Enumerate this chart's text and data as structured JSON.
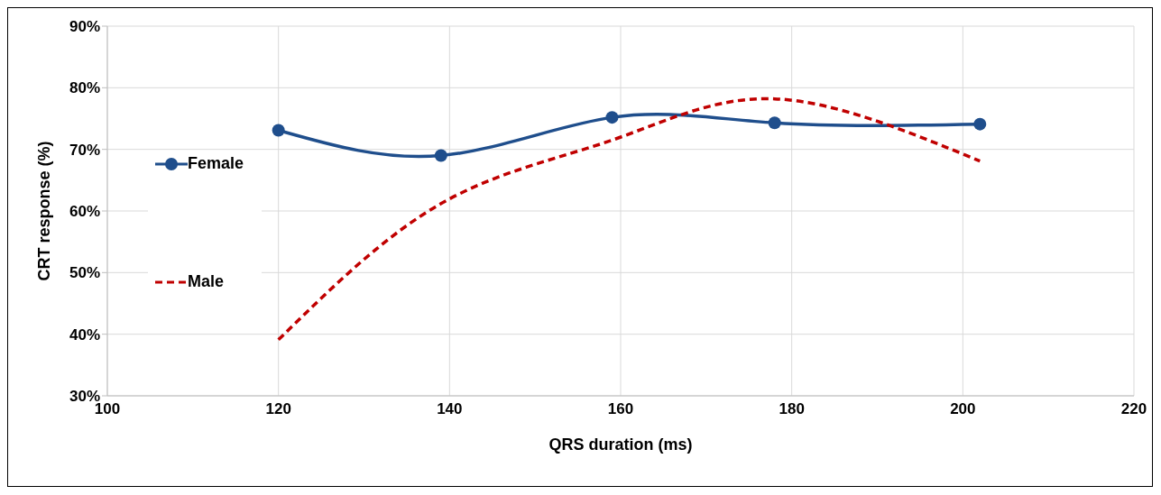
{
  "chart_data": {
    "type": "line",
    "xlabel": "QRS duration (ms)",
    "ylabel": "CRT response (%)",
    "x": [
      120,
      139,
      159,
      178,
      202
    ],
    "series": [
      {
        "name": "Female",
        "color": "#1f4e8c",
        "values": [
          73.1,
          69,
          75.2,
          74.3,
          74.1
        ],
        "marker": "circle",
        "line_style": "solid"
      },
      {
        "name": "Male",
        "color": "#c00000",
        "values": [
          39.1,
          61.2,
          71.5,
          78.2,
          68.1
        ],
        "marker": "none",
        "line_style": "dashed"
      }
    ],
    "xlim": [
      100,
      220
    ],
    "xticks": [
      100,
      120,
      140,
      160,
      180,
      200,
      220
    ],
    "ylim": [
      30,
      90
    ],
    "yticks": [
      {
        "value": 30,
        "label": "30%"
      },
      {
        "value": 40,
        "label": "40%"
      },
      {
        "value": 50,
        "label": "50%"
      },
      {
        "value": 60,
        "label": "60%"
      },
      {
        "value": 70,
        "label": "70%"
      },
      {
        "value": 80,
        "label": "80%"
      },
      {
        "value": 90,
        "label": "90%"
      }
    ],
    "grid": true,
    "legend": "left"
  }
}
